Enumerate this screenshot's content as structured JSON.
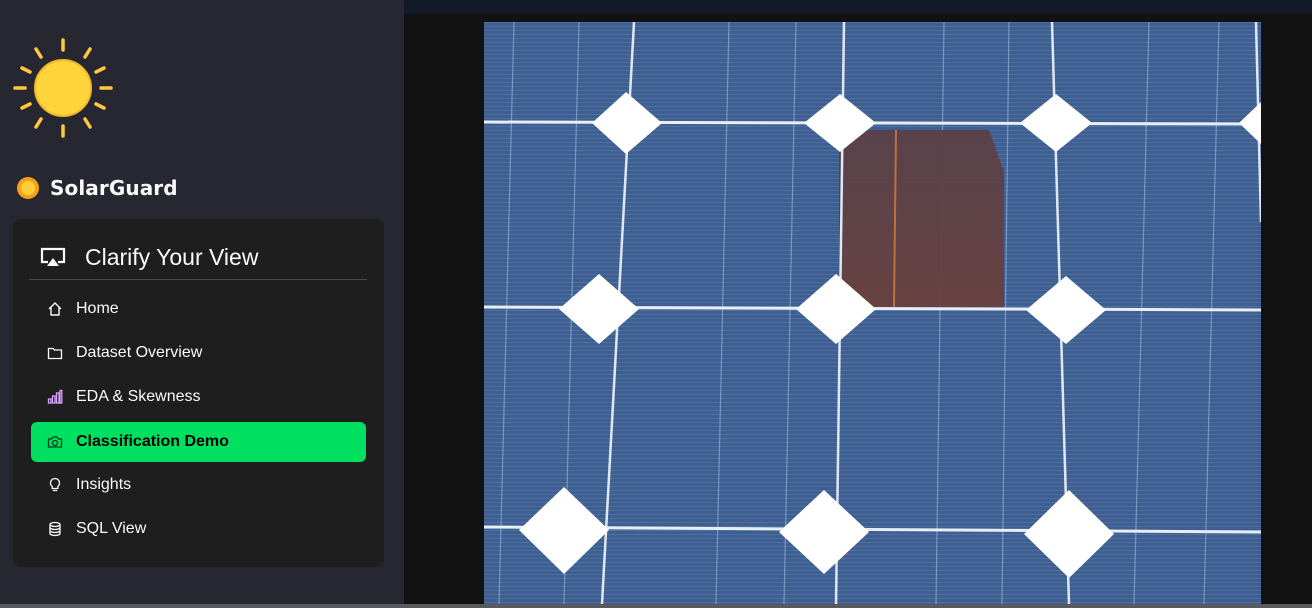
{
  "app": {
    "name": "SolarGuard"
  },
  "menu": {
    "title": "Clarify Your View",
    "items": [
      {
        "label": "Home",
        "icon": "house-icon"
      },
      {
        "label": "Dataset Overview",
        "icon": "folder-icon"
      },
      {
        "label": "EDA & Skewness",
        "icon": "bar-chart-icon"
      },
      {
        "label": "Classification Demo",
        "icon": "camera-icon",
        "active": true
      },
      {
        "label": "Insights",
        "icon": "lightbulb-icon"
      },
      {
        "label": "SQL View",
        "icon": "database-icon"
      }
    ],
    "active_color": "#00e060"
  },
  "theme": {
    "sidebar_bg": "#262730",
    "card_bg": "#1e1e1e",
    "main_bg": "#121212",
    "sun_color": "#ffd43b"
  },
  "main": {
    "image": "solar-panel-photo"
  }
}
